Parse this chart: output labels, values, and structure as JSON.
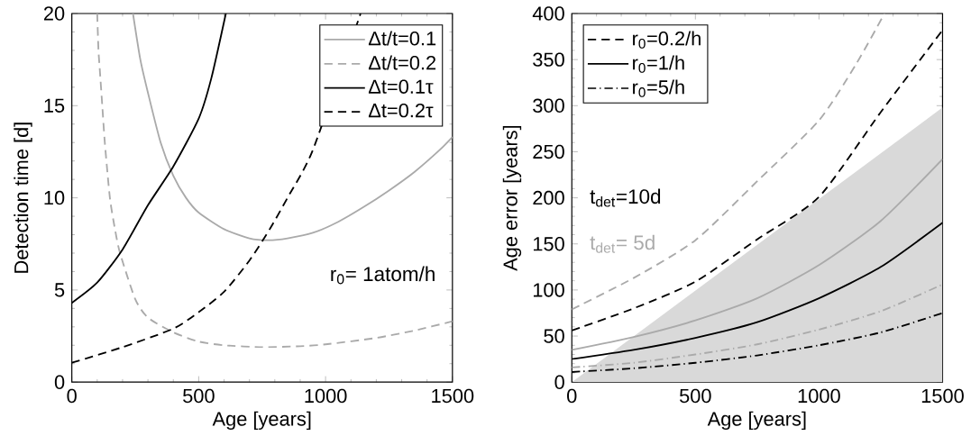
{
  "chart_data": [
    {
      "type": "line",
      "xlabel": "Age [years]",
      "ylabel": "Detection time [d]",
      "xlim": [
        0,
        1500
      ],
      "ylim": [
        0,
        20
      ],
      "xticks": [
        0,
        500,
        1000,
        1500
      ],
      "yticks": [
        0,
        5,
        10,
        15,
        20
      ],
      "grid": false,
      "legend": "top right",
      "annotations": [
        "r$_{0}$= 1atom/h"
      ],
      "series": [
        {
          "name": "Δt/t=0.1",
          "color": "#aaaaaa",
          "line_style": "solid",
          "x": [
            241,
            270,
            300,
            350,
            400,
            450,
            500,
            600,
            700,
            775,
            850,
            950,
            1050,
            1150,
            1250,
            1350,
            1450,
            1500
          ],
          "values": [
            20,
            17.5,
            15.7,
            13.0,
            11.2,
            10.0,
            9.2,
            8.3,
            7.8,
            7.7,
            7.8,
            8.1,
            8.7,
            9.5,
            10.4,
            11.4,
            12.6,
            13.3
          ]
        },
        {
          "name": "Δt/t=0.2",
          "color": "#aaaaaa",
          "line_style": "dashed",
          "x": [
            100,
            105,
            110,
            120,
            130,
            150,
            170,
            190,
            250,
            300,
            400,
            500,
            600,
            750,
            900,
            1000,
            1200,
            1350,
            1500
          ],
          "values": [
            20,
            18,
            17,
            15,
            13,
            10,
            8.3,
            7,
            4.5,
            3.5,
            2.7,
            2.2,
            2.0,
            1.9,
            1.95,
            2.05,
            2.4,
            2.8,
            3.3
          ]
        },
        {
          "name": "Δt=0.1τ",
          "color": "#000000",
          "line_style": "solid",
          "x": [
            0,
            100,
            200,
            300,
            400,
            500,
            550,
            607
          ],
          "values": [
            4.3,
            5.4,
            7.2,
            9.6,
            11.7,
            14.3,
            16.5,
            20
          ]
        },
        {
          "name": "Δt=0.2τ",
          "color": "#000000",
          "line_style": "dashed",
          "x": [
            0,
            200,
            400,
            500,
            600,
            700,
            780,
            850,
            950,
            1050,
            1138
          ],
          "values": [
            1.05,
            1.9,
            2.9,
            3.8,
            4.9,
            6.6,
            8.3,
            10.0,
            12.6,
            null,
            20
          ]
        }
      ]
    },
    {
      "type": "line",
      "xlabel": "Age [years]",
      "ylabel": "Age error [years]",
      "xlim": [
        0,
        1500
      ],
      "ylim": [
        0,
        400
      ],
      "xticks": [
        0,
        500,
        1000,
        1500
      ],
      "yticks": [
        0,
        50,
        100,
        150,
        200,
        250,
        300,
        350,
        400
      ],
      "grid": false,
      "legend": "top left",
      "annotations": [
        "t$_{det}$=10d",
        "t$_{det}$= 5d"
      ],
      "series": [
        {
          "type": "area",
          "color": "#d9d9d9",
          "x": [
            0,
            1500
          ],
          "values": [
            0,
            298
          ]
        },
        {
          "color": "#aaaaaa",
          "line_style": "dashed",
          "x": [
            0,
            250,
            500,
            750,
            1000,
            1150,
            1265
          ],
          "values": [
            79,
            113,
            154,
            218,
            284,
            345,
            400
          ]
        },
        {
          "color": "#aaaaaa",
          "line_style": "solid",
          "x": [
            0,
            250,
            500,
            750,
            1000,
            1250,
            1500
          ],
          "values": [
            35,
            49,
            67,
            91,
            127,
            175,
            242
          ]
        },
        {
          "color": "#aaaaaa",
          "line_style": "dashdot",
          "x": [
            0,
            250,
            500,
            750,
            1000,
            1250,
            1500
          ],
          "values": [
            16,
            21,
            30,
            41,
            57,
            77,
            106
          ]
        },
        {
          "name": "r$_{0}$=0.2/h",
          "color": "#000000",
          "line_style": "dashed",
          "x": [
            0,
            250,
            500,
            750,
            1000,
            1250,
            1500
          ],
          "values": [
            56,
            80,
            109,
            155,
            201,
            293,
            382
          ]
        },
        {
          "name": "r$_{0}$=1/h",
          "color": "#000000",
          "line_style": "solid",
          "x": [
            0,
            250,
            500,
            750,
            1000,
            1250,
            1500
          ],
          "values": [
            25,
            35,
            48,
            65,
            91,
            125,
            173
          ]
        },
        {
          "name": "r$_{0}$=5/h",
          "color": "#000000",
          "line_style": "dashdot",
          "x": [
            0,
            250,
            500,
            750,
            1000,
            1250,
            1500
          ],
          "values": [
            11,
            15,
            21,
            29,
            40,
            54,
            75
          ]
        }
      ]
    }
  ]
}
